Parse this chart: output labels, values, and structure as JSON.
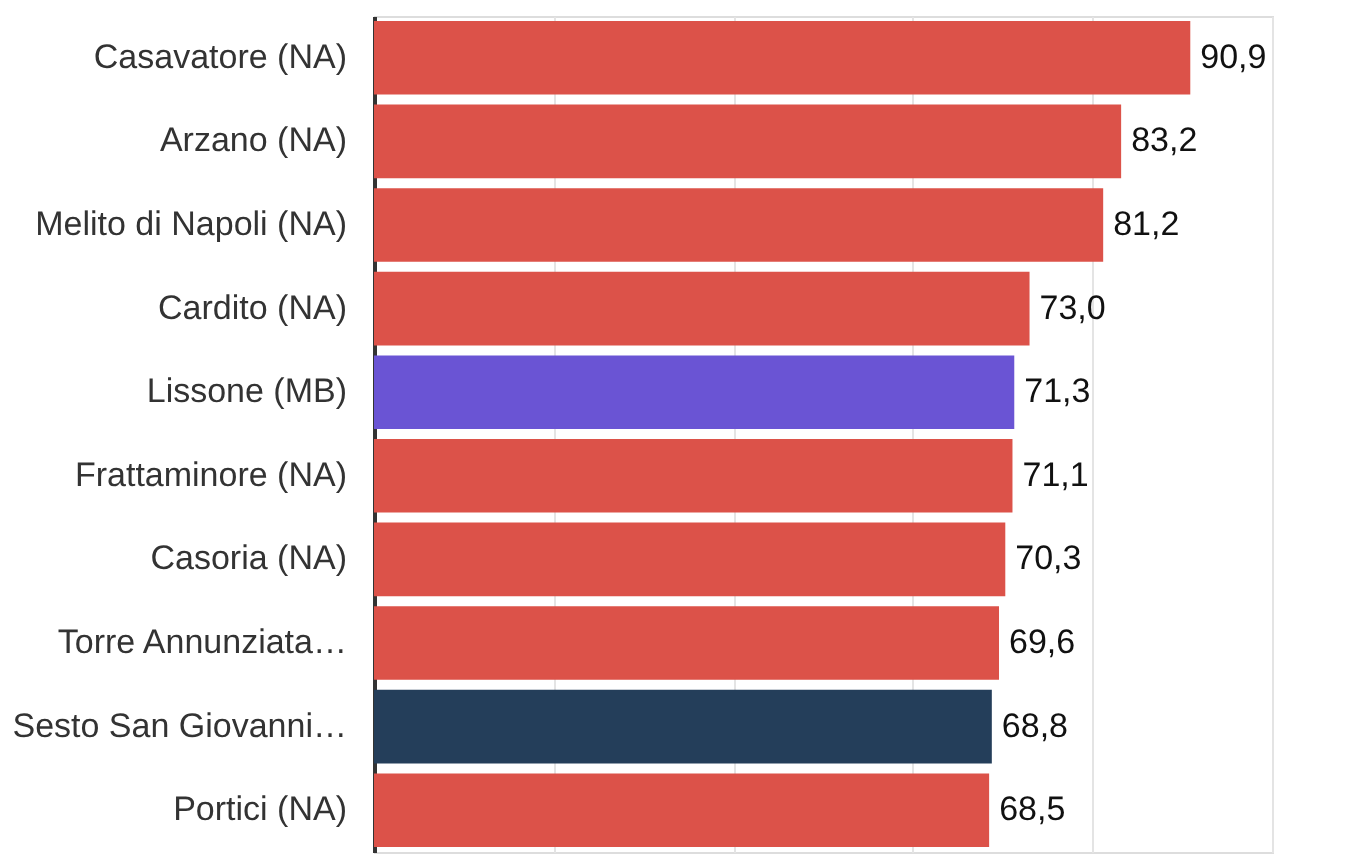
{
  "chart_data": {
    "type": "bar",
    "orientation": "horizontal",
    "categories": [
      "Casavatore (NA)",
      "Arzano (NA)",
      "Melito di Napoli (NA)",
      "Cardito (NA)",
      "Lissone (MB)",
      "Frattaminore (NA)",
      "Casoria (NA)",
      "Torre Annunziata…",
      "Sesto San Giovanni…",
      "Portici (NA)"
    ],
    "values": [
      90.9,
      83.2,
      81.2,
      73.0,
      71.3,
      71.1,
      70.3,
      69.6,
      68.8,
      68.5
    ],
    "colors": [
      "#dc5249",
      "#dc5249",
      "#dc5249",
      "#dc5249",
      "#6a54d4",
      "#dc5249",
      "#dc5249",
      "#dc5249",
      "#243e5a",
      "#dc5249"
    ],
    "value_labels": [
      "90,9",
      "83,2",
      "81,2",
      "73,0",
      "71,3",
      "71,1",
      "70,3",
      "69,6",
      "68,8",
      "68,5"
    ],
    "xlim": [
      0,
      100
    ],
    "xticks": [
      {
        "value": 20,
        "label": null
      },
      {
        "value": 40,
        "label": null
      },
      {
        "value": 60,
        "label": null
      },
      {
        "value": 80,
        "label": null
      },
      {
        "value": 100,
        "label": null
      }
    ],
    "grid": "x",
    "tick_labels": "y"
  }
}
